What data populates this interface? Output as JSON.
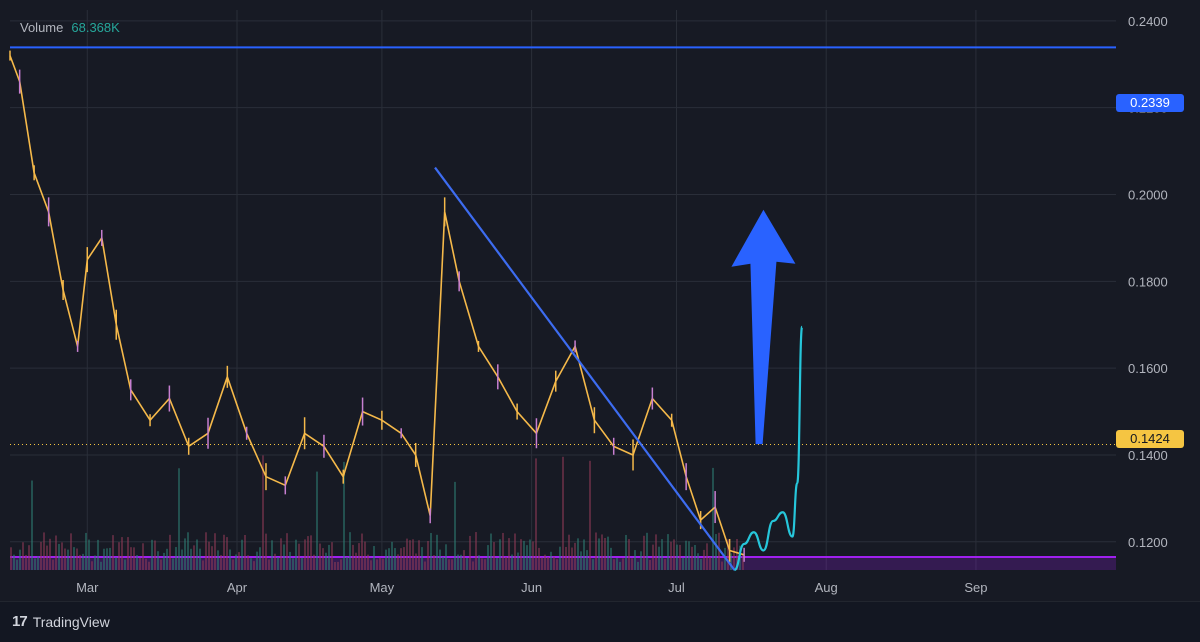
{
  "volume_legend": {
    "label": "Volume",
    "value": "68.368K"
  },
  "brand": {
    "name": "TradingView",
    "logo_icon": "tradingview-logo-icon"
  },
  "price_tags": {
    "resistance": "0.2339",
    "current": "0.1424"
  },
  "colors": {
    "background": "#171a24",
    "grid": "#2a2e39",
    "candle_wick_up": "#f5b94a",
    "candle_wick_down": "#c77fd1",
    "resistance_line": "#2962ff",
    "trendline": "#3d6cf0",
    "support_zone": "#a020f0",
    "projection_path": "#26c6da",
    "arrow": "#2962ff",
    "current_price_line": "#f5c542"
  },
  "chart_data": {
    "type": "line",
    "title": "",
    "xlabel": "",
    "ylabel": "",
    "x_ticks": [
      "Mar",
      "Apr",
      "May",
      "Jun",
      "Jul",
      "Aug",
      "Sep"
    ],
    "y_ticks": [
      "0.2400",
      "0.2200",
      "0.2000",
      "0.1800",
      "0.1600",
      "0.1400",
      "0.1200"
    ],
    "ylim": [
      0.1135,
      0.2425
    ],
    "xlim": [
      "Feb 13",
      "Sep 30"
    ],
    "grid": true,
    "price_series": {
      "x": [
        "Feb 13",
        "Feb 15",
        "Feb 18",
        "Feb 21",
        "Feb 24",
        "Feb 27",
        "Mar 1",
        "Mar 4",
        "Mar 7",
        "Mar 10",
        "Mar 14",
        "Mar 18",
        "Mar 22",
        "Mar 26",
        "Mar 30",
        "Apr 3",
        "Apr 7",
        "Apr 11",
        "Apr 15",
        "Apr 19",
        "Apr 23",
        "Apr 27",
        "May 1",
        "May 5",
        "May 8",
        "May 11",
        "May 14",
        "May 17",
        "May 21",
        "May 25",
        "May 29",
        "Jun 2",
        "Jun 6",
        "Jun 10",
        "Jun 14",
        "Jun 18",
        "Jun 22",
        "Jun 26",
        "Jun 30",
        "Jul 3",
        "Jul 6",
        "Jul 9",
        "Jul 12",
        "Jul 15"
      ],
      "y": [
        0.232,
        0.226,
        0.205,
        0.196,
        0.178,
        0.165,
        0.185,
        0.19,
        0.17,
        0.155,
        0.148,
        0.153,
        0.142,
        0.145,
        0.158,
        0.145,
        0.135,
        0.133,
        0.145,
        0.142,
        0.135,
        0.15,
        0.148,
        0.145,
        0.14,
        0.126,
        0.196,
        0.18,
        0.165,
        0.158,
        0.15,
        0.145,
        0.157,
        0.165,
        0.148,
        0.142,
        0.14,
        0.153,
        0.148,
        0.135,
        0.125,
        0.128,
        0.118,
        0.117
      ]
    },
    "volume_bars_visible": true,
    "annotations": {
      "resistance_level": 0.2339,
      "current_price": 0.1424,
      "support_zone": [
        0.1135,
        0.1165
      ],
      "trendline": {
        "from": [
          "May 12",
          0.2062
        ],
        "to": [
          "Jul 13",
          0.1135
        ]
      },
      "projection_path": {
        "x": [
          "Jul 13",
          "Jul 15",
          "Jul 17",
          "Jul 19",
          "Jul 21",
          "Jul 23",
          "Jul 25",
          "Jul 26",
          "Jul 27"
        ],
        "y": [
          0.1135,
          0.1195,
          0.1222,
          0.118,
          0.1248,
          0.1268,
          0.1212,
          0.1335,
          0.1695
        ]
      },
      "arrow": {
        "from": [
          "Jul 18",
          0.1425
        ],
        "to": [
          "Jul 19",
          0.1965
        ]
      }
    }
  }
}
